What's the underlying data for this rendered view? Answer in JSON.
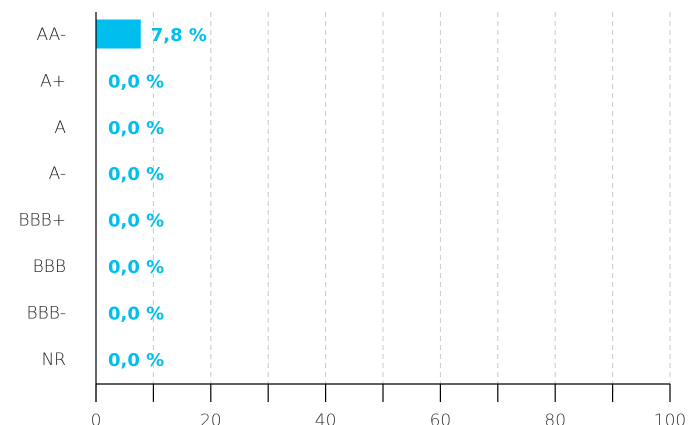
{
  "chart_data": {
    "type": "bar",
    "orientation": "horizontal",
    "categories": [
      "AA-",
      "A+",
      "A",
      "A-",
      "BBB+",
      "BBB",
      "BBB-",
      "NR"
    ],
    "values": [
      7.8,
      0.0,
      0.0,
      0.0,
      0.0,
      0.0,
      0.0,
      0.0
    ],
    "value_labels": [
      "7,8 %",
      "0,0 %",
      "0,0 %",
      "0,0 %",
      "0,0 %",
      "0,0 %",
      "0,0 %",
      "0,0 %"
    ],
    "xlim": [
      0,
      100
    ],
    "x_ticks": [
      0,
      20,
      40,
      60,
      80,
      100
    ],
    "x_tick_labels": [
      "0",
      "20",
      "40",
      "60",
      "80",
      "100"
    ],
    "grid": true,
    "bar_color": "#00bfef",
    "label_color": "#00bfef",
    "title": "",
    "xlabel": "",
    "ylabel": ""
  }
}
